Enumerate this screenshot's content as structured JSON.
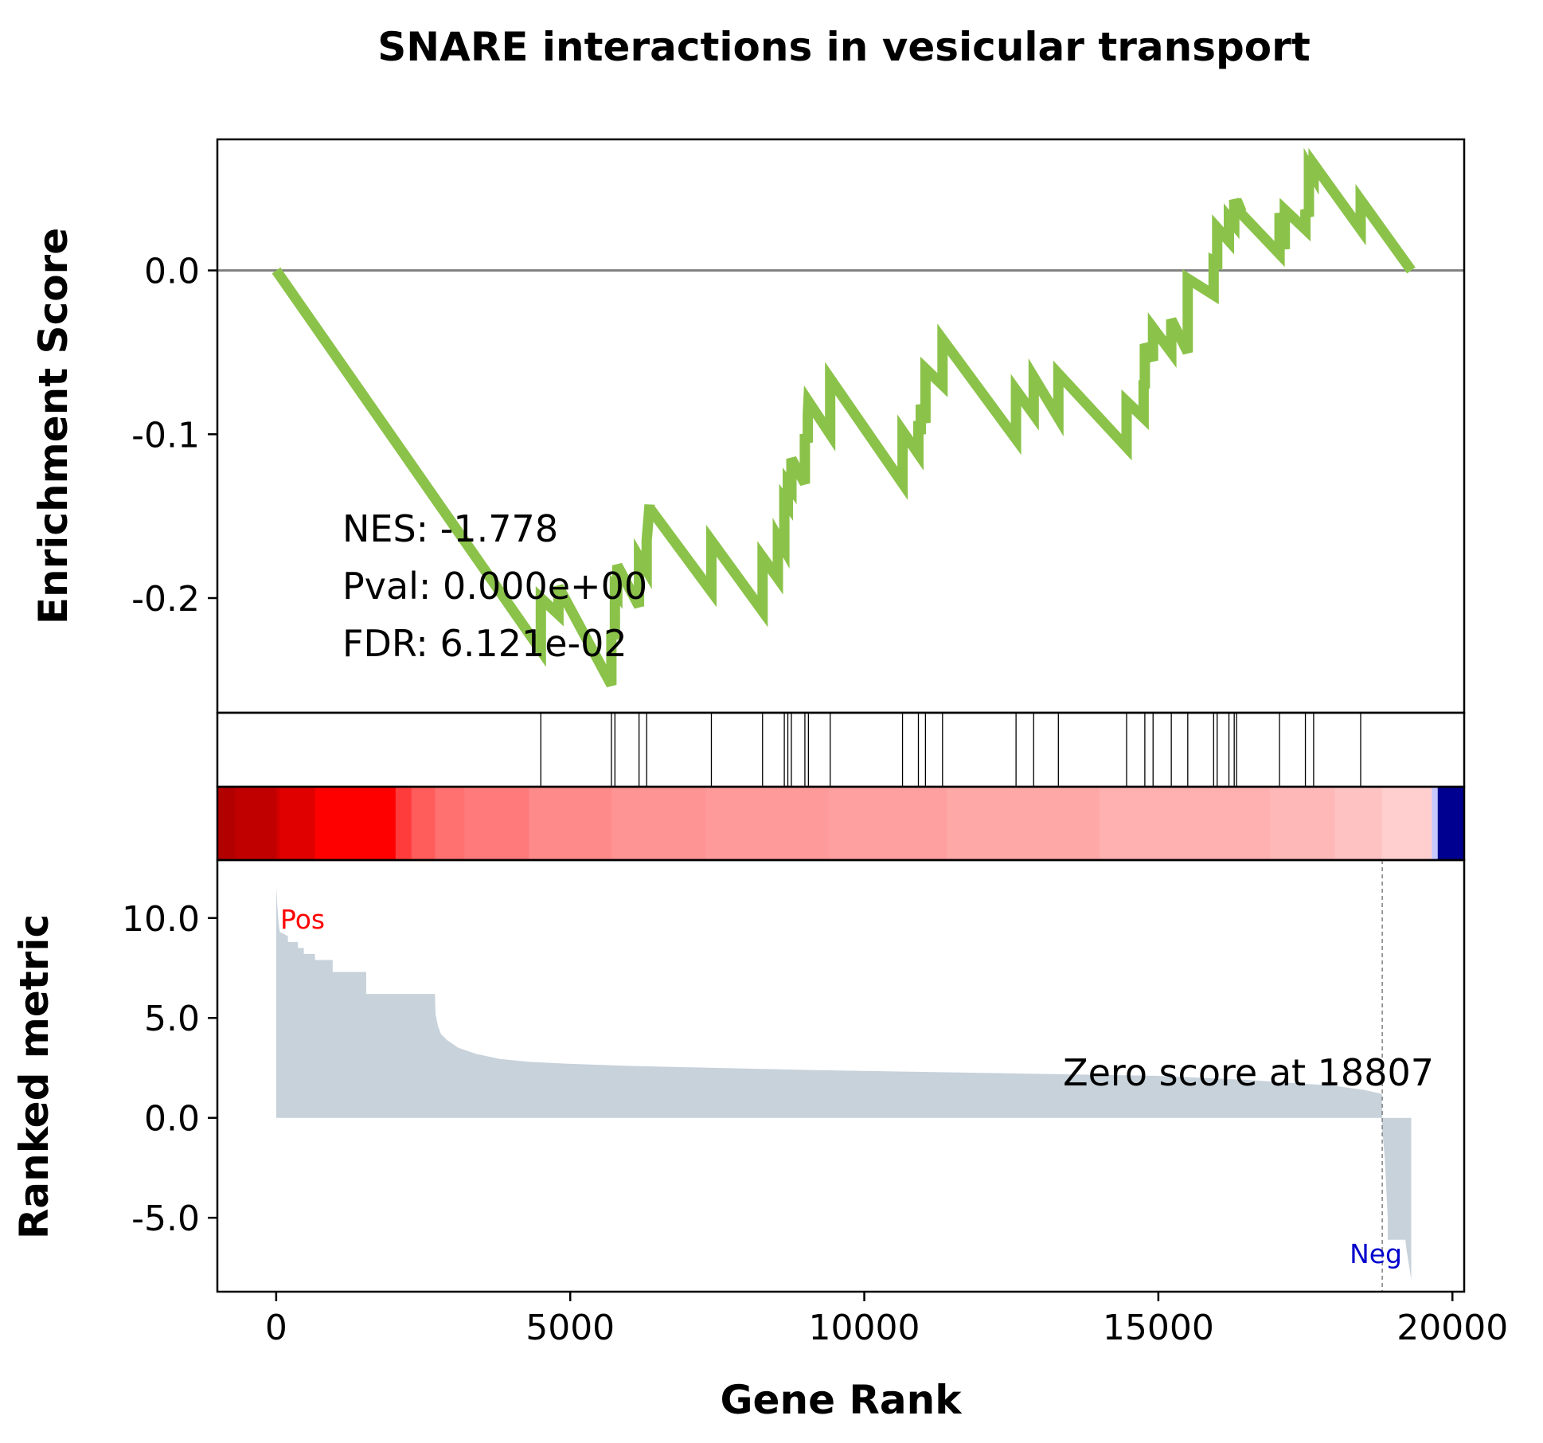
{
  "chart_data": [
    {
      "type": "line",
      "title": "SNARE interactions in vesicular transport",
      "ylabel": "Enrichment Score",
      "ylim": [
        -0.27,
        0.08
      ],
      "yticks": [
        {
          "value": 0.0,
          "label": "0.0"
        },
        {
          "value": -0.1,
          "label": "-0.1"
        },
        {
          "value": -0.2,
          "label": "-0.2"
        }
      ],
      "baseline": 0.0,
      "line_color": "#8bc34a",
      "stats": {
        "nes": "NES: -1.778",
        "pval": "Pval: 0.000e+00",
        "fdr": "FDR: 6.121e-02"
      },
      "series": [
        {
          "x": [
            0,
            4500,
            4500,
            4800,
            4800,
            5700,
            5700,
            5760,
            5760,
            5800,
            5800,
            6170,
            6170,
            6300,
            6300,
            6350,
            6350,
            7400,
            7400,
            8270,
            8270,
            8530,
            8530,
            8640,
            8640,
            8700,
            8700,
            8760,
            8760,
            8990,
            8990,
            9040,
            9040,
            9050,
            9050,
            9420,
            9420,
            10650,
            10650,
            10920,
            10920,
            10960,
            10960,
            11040,
            11040,
            11330,
            11330,
            12580,
            12580,
            12880,
            12880,
            13300,
            13300,
            14460,
            14460,
            14750,
            14750,
            14770,
            14770,
            14910,
            14910,
            15220,
            15220,
            15500,
            15500,
            15940,
            15940,
            16000,
            16000,
            16200,
            16200,
            16290,
            16290,
            16330,
            16330,
            16400,
            16400,
            17060,
            17060,
            17150,
            17150,
            17500,
            17500,
            17560,
            17560,
            17640,
            17640,
            18440,
            18440,
            19300
          ],
          "y": [
            0.0,
            -0.232,
            -0.2,
            -0.21,
            -0.193,
            -0.253,
            -0.22,
            -0.225,
            -0.195,
            -0.197,
            -0.18,
            -0.205,
            -0.175,
            -0.183,
            -0.165,
            -0.143,
            -0.145,
            -0.196,
            -0.165,
            -0.208,
            -0.175,
            -0.188,
            -0.163,
            -0.17,
            -0.14,
            -0.143,
            -0.13,
            -0.133,
            -0.115,
            -0.13,
            -0.1,
            -0.105,
            -0.088,
            -0.08,
            -0.08,
            -0.1,
            -0.066,
            -0.13,
            -0.098,
            -0.112,
            -0.092,
            -0.1,
            -0.082,
            -0.093,
            -0.06,
            -0.07,
            -0.042,
            -0.103,
            -0.073,
            -0.088,
            -0.065,
            -0.09,
            -0.063,
            -0.108,
            -0.08,
            -0.09,
            -0.067,
            -0.072,
            -0.045,
            -0.055,
            -0.035,
            -0.05,
            -0.03,
            -0.05,
            -0.005,
            -0.015,
            0.006,
            0.005,
            0.026,
            0.018,
            0.032,
            0.028,
            0.043,
            0.04,
            0.043,
            0.037,
            0.035,
            0.01,
            0.035,
            0.013,
            0.037,
            0.025,
            0.037,
            0.033,
            0.063,
            0.058,
            0.065,
            0.025,
            0.043,
            0.0
          ]
        }
      ]
    },
    {
      "type": "event-lines",
      "hits": [
        4500,
        5700,
        5760,
        6170,
        6300,
        7400,
        8270,
        8640,
        8700,
        8760,
        8990,
        9050,
        9420,
        10650,
        10920,
        11040,
        11330,
        12580,
        12880,
        13300,
        14460,
        14770,
        14910,
        15220,
        15500,
        15940,
        16000,
        16200,
        16290,
        16330,
        17060,
        17500,
        17640,
        18440
      ]
    },
    {
      "type": "heatmap",
      "colormap": "bwr",
      "segments": [
        {
          "from": -1000,
          "to": -700,
          "color": "#b20000"
        },
        {
          "from": -700,
          "to": 0,
          "color": "#c00000"
        },
        {
          "from": 0,
          "to": 60,
          "color": "#d00000"
        },
        {
          "from": 60,
          "to": 660,
          "color": "#e00000"
        },
        {
          "from": 660,
          "to": 2030,
          "color": "#ff0000"
        },
        {
          "from": 2030,
          "to": 2300,
          "color": "#ff3c3c"
        },
        {
          "from": 2300,
          "to": 2700,
          "color": "#ff5c5c"
        },
        {
          "from": 2700,
          "to": 3200,
          "color": "#ff7070"
        },
        {
          "from": 3200,
          "to": 4300,
          "color": "#ff7a7a"
        },
        {
          "from": 4300,
          "to": 5700,
          "color": "#ff8a8a"
        },
        {
          "from": 5700,
          "to": 7300,
          "color": "#ff9494"
        },
        {
          "from": 7300,
          "to": 9400,
          "color": "#ff9a9a"
        },
        {
          "from": 9400,
          "to": 11400,
          "color": "#ffa0a0"
        },
        {
          "from": 11400,
          "to": 14000,
          "color": "#ffa8a8"
        },
        {
          "from": 14000,
          "to": 16900,
          "color": "#ffb0b0"
        },
        {
          "from": 16900,
          "to": 18000,
          "color": "#ffb8b8"
        },
        {
          "from": 18000,
          "to": 18800,
          "color": "#ffc2c2"
        },
        {
          "from": 18800,
          "to": 19650,
          "color": "#ffcece"
        },
        {
          "from": 19650,
          "to": 19750,
          "color": "#c8c8ff"
        },
        {
          "from": 19750,
          "to": 20200,
          "color": "#000090"
        }
      ]
    },
    {
      "type": "area",
      "ylabel": "Ranked metric",
      "xlabel": "Gene Rank",
      "xlim": [
        -1000,
        20200
      ],
      "ylim": [
        -8.7,
        12.9
      ],
      "yticks": [
        {
          "value": 10,
          "label": "10.0"
        },
        {
          "value": 5,
          "label": "5.0"
        },
        {
          "value": 0,
          "label": "0.0"
        },
        {
          "value": -5,
          "label": "-5.0"
        }
      ],
      "xticks": [
        {
          "value": 0,
          "label": "0"
        },
        {
          "value": 5000,
          "label": "5000"
        },
        {
          "value": 10000,
          "label": "10000"
        },
        {
          "value": 15000,
          "label": "15000"
        },
        {
          "value": 20000,
          "label": "20000"
        }
      ],
      "fill_color": "#c7d2db",
      "pos_label": "Pos",
      "neg_label": "Neg",
      "zero_cross": 18807,
      "zero_label": "Zero score at 18807",
      "x": [
        0,
        20,
        40,
        60,
        200,
        200,
        370,
        370,
        470,
        470,
        660,
        660,
        960,
        960,
        1530,
        1530,
        2700,
        2710,
        2750,
        2800,
        2900,
        3100,
        3400,
        3800,
        4300,
        5000,
        6000,
        7500,
        9000,
        11000,
        13000,
        15000,
        16500,
        18000,
        18500,
        18800,
        18807,
        18807,
        18850,
        18900,
        18900,
        19200,
        19220,
        19300
      ],
      "y": [
        11.6,
        10.6,
        9.8,
        9.3,
        9.1,
        8.8,
        8.8,
        8.5,
        8.5,
        8.2,
        8.2,
        7.9,
        7.9,
        7.3,
        7.3,
        6.2,
        6.2,
        5.2,
        4.6,
        4.2,
        3.9,
        3.5,
        3.2,
        2.95,
        2.8,
        2.7,
        2.6,
        2.5,
        2.4,
        2.3,
        2.2,
        2.1,
        1.9,
        1.6,
        1.4,
        1.2,
        0.0,
        -0.6,
        -2.0,
        -5.0,
        -6.1,
        -6.1,
        -6.6,
        -8.1
      ]
    }
  ]
}
